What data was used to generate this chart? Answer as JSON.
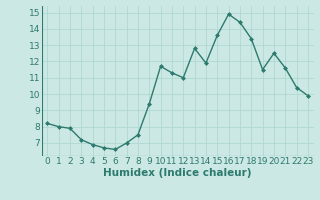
{
  "x": [
    0,
    1,
    2,
    3,
    4,
    5,
    6,
    7,
    8,
    9,
    10,
    11,
    12,
    13,
    14,
    15,
    16,
    17,
    18,
    19,
    20,
    21,
    22,
    23
  ],
  "y": [
    8.2,
    8.0,
    7.9,
    7.2,
    6.9,
    6.7,
    6.6,
    7.0,
    7.5,
    9.4,
    11.7,
    11.3,
    11.0,
    12.8,
    11.9,
    13.6,
    14.9,
    14.4,
    13.4,
    11.5,
    12.5,
    11.6,
    10.4,
    9.9
  ],
  "line_color": "#2d7a6e",
  "marker": "D",
  "marker_size": 2,
  "bg_color": "#cce8e4",
  "grid_color": "#b0d8d2",
  "xlabel": "Humidex (Indice chaleur)",
  "ylim": [
    6.2,
    15.4
  ],
  "xlim": [
    -0.5,
    23.5
  ],
  "yticks": [
    7,
    8,
    9,
    10,
    11,
    12,
    13,
    14,
    15
  ],
  "xticks": [
    0,
    1,
    2,
    3,
    4,
    5,
    6,
    7,
    8,
    9,
    10,
    11,
    12,
    13,
    14,
    15,
    16,
    17,
    18,
    19,
    20,
    21,
    22,
    23
  ],
  "tick_fontsize": 6.5,
  "xlabel_fontsize": 7.5,
  "xlabel_fontweight": "bold",
  "line_width": 1.0
}
